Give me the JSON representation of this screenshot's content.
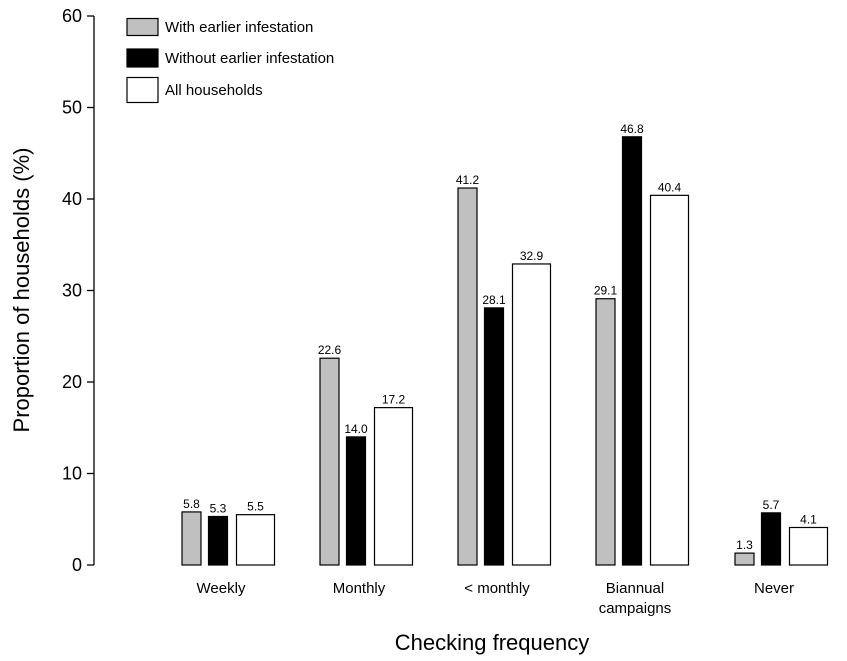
{
  "chart_data": {
    "type": "bar",
    "xlabel": "Checking frequency",
    "ylabel": "Proportion of households (%)",
    "ylim": [
      0,
      60
    ],
    "yticks": [
      0,
      10,
      20,
      30,
      40,
      50,
      60
    ],
    "grid": false,
    "legend_position": "top-left",
    "categories": [
      [
        "Weekly"
      ],
      [
        "Monthly"
      ],
      [
        "< monthly"
      ],
      [
        "Biannual",
        "campaigns"
      ],
      [
        "Never"
      ]
    ],
    "series": [
      {
        "name": "With earlier infestation",
        "color": "#c0c0c0",
        "values": [
          5.8,
          22.6,
          41.2,
          29.1,
          1.3
        ],
        "labels": [
          "5.8",
          "22.6",
          "41.2",
          "29.1",
          "1.3"
        ]
      },
      {
        "name": "Without earlier infestation",
        "color": "#000000",
        "values": [
          5.3,
          14.0,
          28.1,
          46.8,
          5.7
        ],
        "labels": [
          "5.3",
          "14.0",
          "28.1",
          "46.8",
          "5.7"
        ]
      },
      {
        "name": "All households",
        "color": "#ffffff",
        "values": [
          5.5,
          17.2,
          32.9,
          40.4,
          4.1
        ],
        "labels": [
          "5.5",
          "17.2",
          "32.9",
          "40.4",
          "4.1"
        ]
      }
    ]
  }
}
